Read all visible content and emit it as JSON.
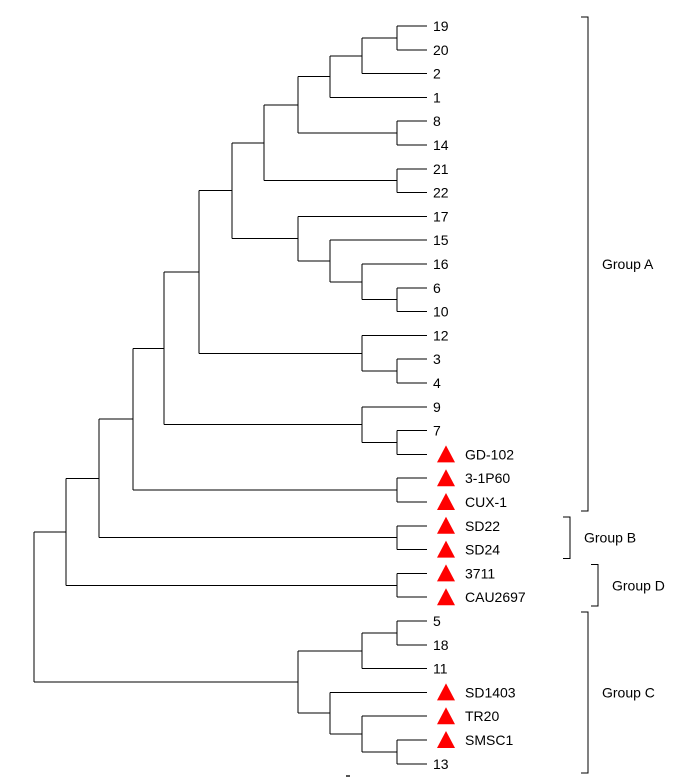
{
  "leaves": [
    {
      "id": "19",
      "marker": false
    },
    {
      "id": "20",
      "marker": false
    },
    {
      "id": "2",
      "marker": false
    },
    {
      "id": "1",
      "marker": false
    },
    {
      "id": "8",
      "marker": false
    },
    {
      "id": "14",
      "marker": false
    },
    {
      "id": "21",
      "marker": false
    },
    {
      "id": "22",
      "marker": false
    },
    {
      "id": "17",
      "marker": false
    },
    {
      "id": "15",
      "marker": false
    },
    {
      "id": "16",
      "marker": false
    },
    {
      "id": "6",
      "marker": false
    },
    {
      "id": "10",
      "marker": false
    },
    {
      "id": "12",
      "marker": false
    },
    {
      "id": "3",
      "marker": false
    },
    {
      "id": "4",
      "marker": false
    },
    {
      "id": "9",
      "marker": false
    },
    {
      "id": "7",
      "marker": false
    },
    {
      "id": "GD-102",
      "marker": true
    },
    {
      "id": "3-1P60",
      "marker": true
    },
    {
      "id": "CUX-1",
      "marker": true
    },
    {
      "id": "SD22",
      "marker": true
    },
    {
      "id": "SD24",
      "marker": true
    },
    {
      "id": "3711",
      "marker": true
    },
    {
      "id": "CAU2697",
      "marker": true
    },
    {
      "id": "5",
      "marker": false
    },
    {
      "id": "18",
      "marker": false
    },
    {
      "id": "11",
      "marker": false
    },
    {
      "id": "SD1403",
      "marker": true
    },
    {
      "id": "TR20",
      "marker": true
    },
    {
      "id": "SMSC1",
      "marker": true
    },
    {
      "id": "13",
      "marker": false
    }
  ],
  "groups": [
    {
      "label": "Group A",
      "first_leaf": 0,
      "last_leaf": 20
    },
    {
      "label": "Group B",
      "first_leaf": 21,
      "last_leaf": 22
    },
    {
      "label": "Group D",
      "first_leaf": 23,
      "last_leaf": 24
    },
    {
      "label": "Group C",
      "first_leaf": 25,
      "last_leaf": 31
    }
  ],
  "colors": {
    "line": "#000000",
    "marker": "#ff0000",
    "text": "#000000"
  },
  "marker_icon": "red-triangle-icon"
}
